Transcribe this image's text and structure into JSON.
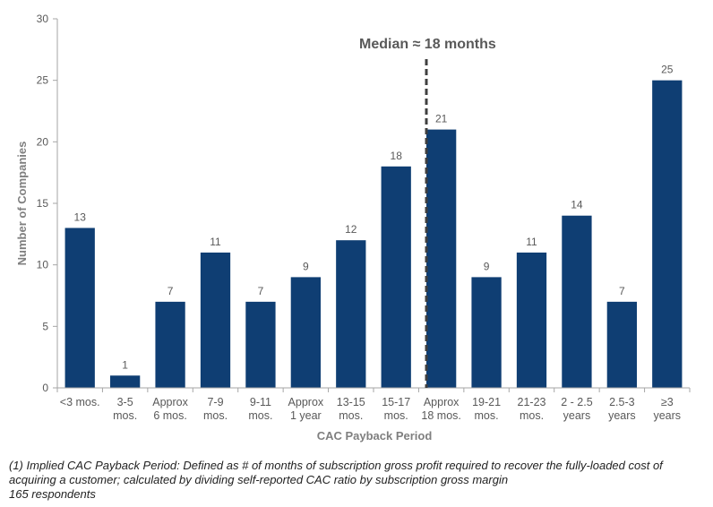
{
  "chart_data": {
    "type": "bar",
    "categories": [
      [
        "<3 mos."
      ],
      [
        "3-5",
        "mos."
      ],
      [
        "Approx",
        "6 mos."
      ],
      [
        "7-9",
        "mos."
      ],
      [
        "9-11",
        "mos."
      ],
      [
        "Approx",
        "1 year"
      ],
      [
        "13-15",
        "mos."
      ],
      [
        "15-17",
        "mos."
      ],
      [
        "Approx",
        "18 mos."
      ],
      [
        "19-21",
        "mos."
      ],
      [
        "21-23",
        "mos."
      ],
      [
        "2 - 2.5",
        "years"
      ],
      [
        "2.5-3",
        "years"
      ],
      [
        "≥3",
        "years"
      ]
    ],
    "values": [
      13,
      1,
      7,
      11,
      7,
      9,
      12,
      18,
      21,
      9,
      11,
      14,
      7,
      25
    ],
    "xlabel": "CAC Payback Period",
    "ylabel": "Number of Companies",
    "ylim": [
      0,
      30
    ],
    "yticks": [
      0,
      5,
      10,
      15,
      20,
      25,
      30
    ],
    "bar_color": "#0f3e73",
    "annotation": {
      "text": "Median ≈ 18 months",
      "category_index": 8
    },
    "grid": false
  },
  "footnote": {
    "line1": "(1) Implied CAC Payback Period: Defined as # of months of subscription gross profit required to recover the fully-loaded cost of",
    "line2": "acquiring a customer; calculated by dividing self-reported CAC ratio by subscription gross margin",
    "line3": "165 respondents"
  }
}
